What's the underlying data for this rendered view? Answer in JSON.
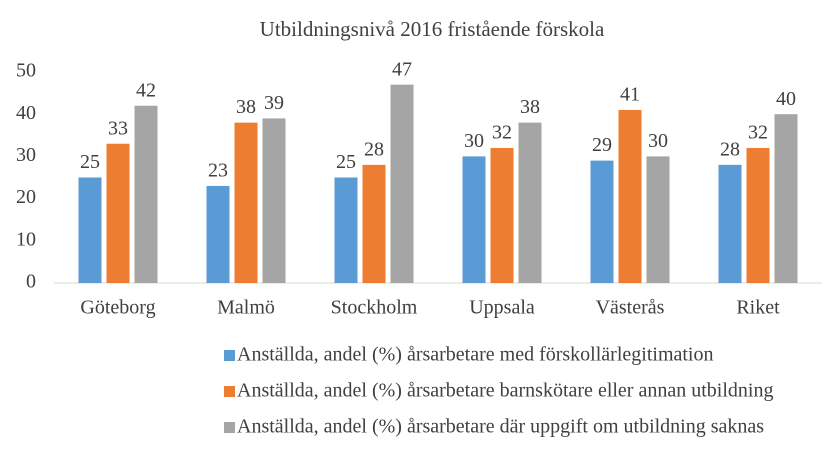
{
  "chart_data": {
    "type": "bar",
    "title": "Utbildningsnivå 2016 fristående förskola",
    "categories": [
      "Göteborg",
      "Malmö",
      "Stockholm",
      "Uppsala",
      "Västerås",
      "Riket"
    ],
    "series": [
      {
        "name": "Anställda, andel (%) årsarbetare med förskollärlegitimation",
        "color": "#5b9bd5",
        "values": [
          25,
          23,
          25,
          30,
          29,
          28
        ]
      },
      {
        "name": "Anställda, andel (%) årsarbetare barnskötare eller annan utbildning",
        "color": "#ed7d31",
        "values": [
          33,
          38,
          28,
          32,
          41,
          32
        ]
      },
      {
        "name": "Anställda, andel (%) årsarbetare där uppgift om utbildning saknas",
        "color": "#a5a5a5",
        "values": [
          42,
          39,
          47,
          38,
          30,
          40
        ]
      }
    ],
    "ylim": [
      0,
      50
    ],
    "yticks": [
      0,
      10,
      20,
      30,
      40,
      50
    ],
    "grid": false,
    "legend": "bottom"
  }
}
